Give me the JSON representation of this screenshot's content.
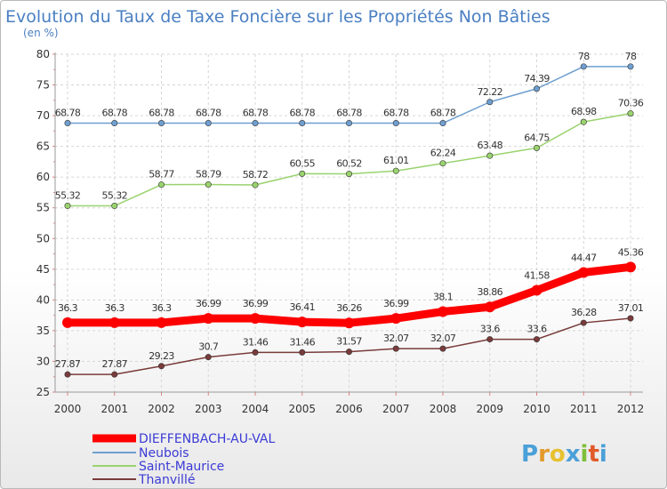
{
  "chart_data": {
    "type": "line",
    "title": "Evolution du Taux de Taxe Foncière sur les Propriétés Non Bâties",
    "subtitle": "(en %)",
    "x": [
      "2000",
      "2001",
      "2002",
      "2003",
      "2004",
      "2005",
      "2006",
      "2007",
      "2008",
      "2009",
      "2010",
      "2011",
      "2012"
    ],
    "ylim": [
      25,
      80
    ],
    "yticks": [
      25,
      30,
      35,
      40,
      45,
      50,
      55,
      60,
      65,
      70,
      75,
      80
    ],
    "grid": true,
    "legend_position": "bottom-left",
    "series": [
      {
        "name": "DIEFFENBACH-AU-VAL",
        "color": "#ff0000",
        "values": [
          36.3,
          36.3,
          36.3,
          36.99,
          36.99,
          36.41,
          36.26,
          36.99,
          38.1,
          38.86,
          41.58,
          44.47,
          45.36
        ],
        "labels": [
          "36.3",
          "36.3",
          "36.3",
          "36.99",
          "36.99",
          "36.41",
          "36.26",
          "36.99",
          "38.1",
          "38.86",
          "41.58",
          "44.47",
          "45.36"
        ]
      },
      {
        "name": "Neubois",
        "color": "#6f9fd1",
        "values": [
          68.78,
          68.78,
          68.78,
          68.78,
          68.78,
          68.78,
          68.78,
          68.78,
          68.78,
          72.22,
          74.39,
          78,
          78
        ],
        "labels": [
          "68.78",
          "68.78",
          "68.78",
          "68.78",
          "68.78",
          "68.78",
          "68.78",
          "68.78",
          "68.78",
          "72.22",
          "74.39",
          "78",
          "78"
        ]
      },
      {
        "name": "Saint-Maurice",
        "color": "#9ad36e",
        "values": [
          55.32,
          55.32,
          58.77,
          58.79,
          58.72,
          60.55,
          60.52,
          61.01,
          62.24,
          63.48,
          64.75,
          68.98,
          70.36
        ],
        "labels": [
          "55.32",
          "55.32",
          "58.77",
          "58.79",
          "58.72",
          "60.55",
          "60.52",
          "61.01",
          "62.24",
          "63.48",
          "64.75",
          "68.98",
          "70.36"
        ]
      },
      {
        "name": "Thanvillé",
        "color": "#7a3b3b",
        "values": [
          27.87,
          27.87,
          29.23,
          30.7,
          31.46,
          31.46,
          31.57,
          32.07,
          32.07,
          33.6,
          33.6,
          36.28,
          37.01
        ],
        "labels": [
          "27.87",
          "27.87",
          "29.23",
          "30.7",
          "31.46",
          "31.46",
          "31.57",
          "32.07",
          "32.07",
          "33.6",
          "33.6",
          "36.28",
          "37.01"
        ]
      }
    ]
  },
  "logo": {
    "text": "Proxiti",
    "letters": [
      "P",
      "r",
      "o",
      "x",
      "i",
      "t",
      "i"
    ],
    "colors": [
      "#4aa0d8",
      "#e39a2a",
      "#e7c130",
      "#4aa0d8",
      "#7fbf3a",
      "#e05a2a",
      "#4aa0d8"
    ]
  }
}
